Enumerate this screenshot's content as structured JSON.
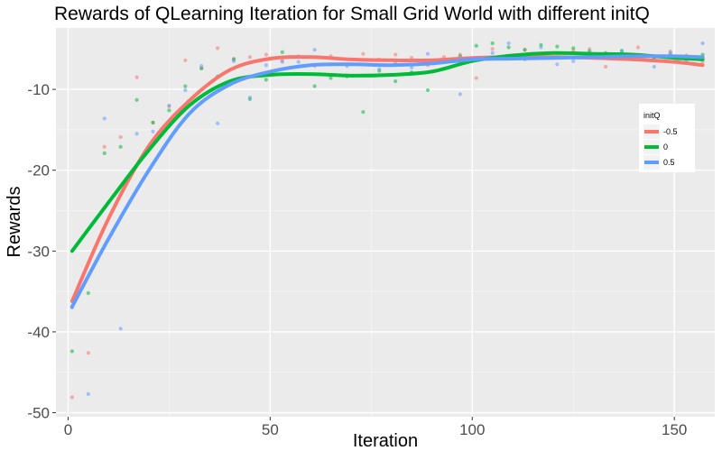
{
  "chart_data": {
    "type": "scatter",
    "title": "Rewards of QLearning Iteration for Small Grid World with different initQ",
    "xlabel": "Iteration",
    "ylabel": "Rewards",
    "xlim": [
      -3,
      160
    ],
    "ylim": [
      -50.5,
      -2.4
    ],
    "x_ticks": [
      0,
      50,
      100,
      150
    ],
    "y_ticks": [
      -50,
      -40,
      -30,
      -20,
      -10
    ],
    "grid": true,
    "background": "#ebebeb",
    "legend": {
      "title": "initQ",
      "placement": "right"
    },
    "series": [
      {
        "name": "-0.5",
        "color": "#f8766d",
        "points": [
          [
            1,
            -48.1
          ],
          [
            5,
            -42.6
          ],
          [
            9,
            -17.1
          ],
          [
            13,
            -15.9
          ],
          [
            17,
            -8.5
          ],
          [
            21,
            -14.1
          ],
          [
            25,
            -12.1
          ],
          [
            29,
            -6.4
          ],
          [
            33,
            -7.4
          ],
          [
            37,
            -4.9
          ],
          [
            41,
            -6.2
          ],
          [
            45,
            -6.0
          ],
          [
            49,
            -5.7
          ],
          [
            53,
            -6.4
          ],
          [
            57,
            -5.9
          ],
          [
            61,
            -7.1
          ],
          [
            65,
            -5.9
          ],
          [
            69,
            -6.9
          ],
          [
            73,
            -5.6
          ],
          [
            77,
            -6.3
          ],
          [
            81,
            -5.7
          ],
          [
            85,
            -6.1
          ],
          [
            89,
            -7.0
          ],
          [
            93,
            -6.0
          ],
          [
            97,
            -5.7
          ],
          [
            101,
            -8.6
          ],
          [
            105,
            -5.0
          ],
          [
            109,
            -6.1
          ],
          [
            113,
            -5.1
          ],
          [
            117,
            -5.6
          ],
          [
            121,
            -6.0
          ],
          [
            125,
            -5.2
          ],
          [
            129,
            -5.0
          ],
          [
            133,
            -7.2
          ],
          [
            137,
            -5.8
          ],
          [
            141,
            -4.8
          ],
          [
            145,
            -6.0
          ],
          [
            149,
            -5.3
          ],
          [
            153,
            -5.8
          ],
          [
            157,
            -6.6
          ]
        ],
        "smooth": [
          [
            1,
            -36.2
          ],
          [
            10,
            -26.0
          ],
          [
            20,
            -17.0
          ],
          [
            30,
            -11.4
          ],
          [
            40,
            -7.6
          ],
          [
            50,
            -6.2
          ],
          [
            60,
            -6.0
          ],
          [
            70,
            -6.3
          ],
          [
            80,
            -6.4
          ],
          [
            90,
            -6.4
          ],
          [
            100,
            -6.1
          ],
          [
            110,
            -6.0
          ],
          [
            120,
            -6.0
          ],
          [
            130,
            -6.1
          ],
          [
            140,
            -6.3
          ],
          [
            150,
            -6.6
          ],
          [
            157,
            -7.0
          ]
        ]
      },
      {
        "name": "0",
        "color": "#00ba38",
        "points": [
          [
            1,
            -42.4
          ],
          [
            5,
            -35.2
          ],
          [
            9,
            -17.9
          ],
          [
            13,
            -17.1
          ],
          [
            17,
            -11.3
          ],
          [
            21,
            -14.1
          ],
          [
            25,
            -12.6
          ],
          [
            29,
            -9.6
          ],
          [
            33,
            -7.4
          ],
          [
            37,
            -8.4
          ],
          [
            41,
            -6.3
          ],
          [
            45,
            -11.2
          ],
          [
            49,
            -8.8
          ],
          [
            53,
            -5.4
          ],
          [
            57,
            -8.1
          ],
          [
            61,
            -9.6
          ],
          [
            65,
            -8.6
          ],
          [
            69,
            -8.4
          ],
          [
            73,
            -12.8
          ],
          [
            77,
            -7.7
          ],
          [
            81,
            -9.0
          ],
          [
            85,
            -7.9
          ],
          [
            89,
            -10.1
          ],
          [
            93,
            -6.5
          ],
          [
            97,
            -5.9
          ],
          [
            101,
            -4.6
          ],
          [
            105,
            -4.3
          ],
          [
            109,
            -4.8
          ],
          [
            113,
            -5.1
          ],
          [
            117,
            -4.5
          ],
          [
            121,
            -4.7
          ],
          [
            125,
            -4.9
          ],
          [
            129,
            -5.3
          ],
          [
            133,
            -5.5
          ],
          [
            137,
            -5.2
          ],
          [
            141,
            -5.9
          ],
          [
            145,
            -6.1
          ],
          [
            149,
            -5.7
          ],
          [
            153,
            -6.2
          ],
          [
            157,
            -5.7
          ]
        ],
        "smooth": [
          [
            1,
            -30.0
          ],
          [
            10,
            -24.0
          ],
          [
            20,
            -17.5
          ],
          [
            30,
            -12.0
          ],
          [
            40,
            -9.0
          ],
          [
            50,
            -8.2
          ],
          [
            60,
            -8.1
          ],
          [
            70,
            -8.3
          ],
          [
            80,
            -8.2
          ],
          [
            90,
            -7.8
          ],
          [
            100,
            -6.5
          ],
          [
            110,
            -5.8
          ],
          [
            120,
            -5.5
          ],
          [
            130,
            -5.6
          ],
          [
            140,
            -5.7
          ],
          [
            150,
            -6.1
          ],
          [
            157,
            -6.3
          ]
        ]
      },
      {
        "name": "0.5",
        "color": "#619cff",
        "points": [
          [
            1,
            -37.0
          ],
          [
            5,
            -47.7
          ],
          [
            9,
            -13.6
          ],
          [
            13,
            -39.6
          ],
          [
            17,
            -15.5
          ],
          [
            21,
            -15.2
          ],
          [
            25,
            -12.0
          ],
          [
            29,
            -10.1
          ],
          [
            33,
            -7.1
          ],
          [
            37,
            -14.2
          ],
          [
            41,
            -6.5
          ],
          [
            45,
            -11.0
          ],
          [
            49,
            -7.0
          ],
          [
            53,
            -6.6
          ],
          [
            57,
            -6.6
          ],
          [
            61,
            -5.1
          ],
          [
            65,
            -6.9
          ],
          [
            69,
            -7.1
          ],
          [
            73,
            -6.9
          ],
          [
            77,
            -7.5
          ],
          [
            81,
            -6.8
          ],
          [
            85,
            -7.3
          ],
          [
            89,
            -5.6
          ],
          [
            93,
            -6.6
          ],
          [
            97,
            -10.6
          ],
          [
            101,
            -6.2
          ],
          [
            105,
            -5.5
          ],
          [
            109,
            -4.3
          ],
          [
            113,
            -6.3
          ],
          [
            117,
            -4.8
          ],
          [
            121,
            -6.9
          ],
          [
            125,
            -6.5
          ],
          [
            129,
            -5.7
          ],
          [
            133,
            -5.9
          ],
          [
            137,
            -5.4
          ],
          [
            141,
            -6.0
          ],
          [
            145,
            -7.2
          ],
          [
            149,
            -5.5
          ],
          [
            153,
            -6.5
          ],
          [
            157,
            -4.3
          ]
        ],
        "smooth": [
          [
            1,
            -36.9
          ],
          [
            10,
            -28.5
          ],
          [
            20,
            -20.0
          ],
          [
            30,
            -13.0
          ],
          [
            40,
            -9.4
          ],
          [
            50,
            -7.8
          ],
          [
            60,
            -7.0
          ],
          [
            70,
            -6.9
          ],
          [
            80,
            -7.0
          ],
          [
            90,
            -6.8
          ],
          [
            100,
            -6.3
          ],
          [
            110,
            -6.2
          ],
          [
            120,
            -6.1
          ],
          [
            130,
            -6.0
          ],
          [
            140,
            -5.9
          ],
          [
            150,
            -5.9
          ],
          [
            157,
            -6.0
          ]
        ]
      }
    ]
  }
}
